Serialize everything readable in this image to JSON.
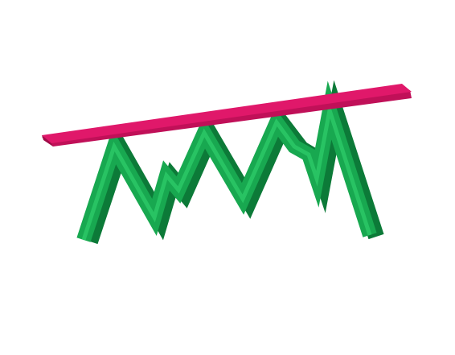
{
  "colors": {
    "background": "#ffffff",
    "beam_top": "#e0186a",
    "beam_front": "#c01058",
    "beam_end": "#a00c48",
    "zigzag_front": "#18a850",
    "zigzag_side": "#0c7a38",
    "zigzag_top": "#2cc866"
  }
}
